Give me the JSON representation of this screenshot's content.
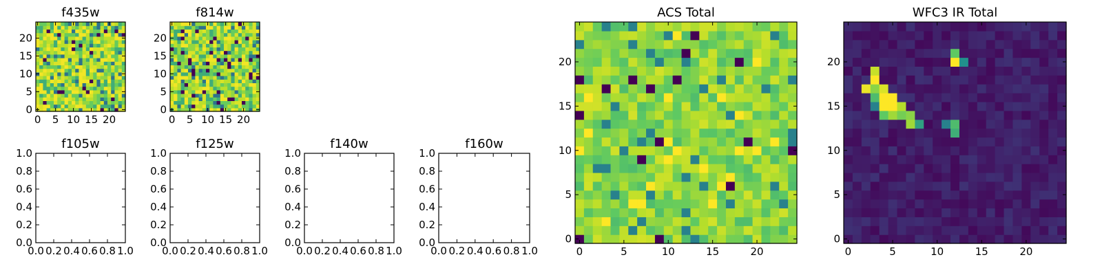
{
  "figure": {
    "panels": [
      {
        "key": "f435w",
        "title": "f435w",
        "kind": "image",
        "xticks": [
          "0",
          "5",
          "10",
          "15",
          "20"
        ],
        "yticks": [
          "0",
          "5",
          "10",
          "15",
          "20"
        ]
      },
      {
        "key": "f814w",
        "title": "f814w",
        "kind": "image",
        "xticks": [
          "0",
          "5",
          "10",
          "15",
          "20"
        ],
        "yticks": [
          "0",
          "5",
          "10",
          "15",
          "20"
        ]
      },
      {
        "key": "f105w",
        "title": "f105w",
        "kind": "empty",
        "xticks": [
          "0.0",
          "0.2",
          "0.4",
          "0.6",
          "0.8",
          "1.0"
        ],
        "yticks": [
          "0.0",
          "0.2",
          "0.4",
          "0.6",
          "0.8",
          "1.0"
        ]
      },
      {
        "key": "f125w",
        "title": "f125w",
        "kind": "empty",
        "xticks": [
          "0.0",
          "0.2",
          "0.4",
          "0.6",
          "0.8",
          "1.0"
        ],
        "yticks": [
          "0.0",
          "0.2",
          "0.4",
          "0.6",
          "0.8",
          "1.0"
        ]
      },
      {
        "key": "f140w",
        "title": "f140w",
        "kind": "empty",
        "xticks": [
          "0.0",
          "0.2",
          "0.4",
          "0.6",
          "0.8",
          "1.0"
        ],
        "yticks": [
          "0.0",
          "0.2",
          "0.4",
          "0.6",
          "0.8",
          "1.0"
        ]
      },
      {
        "key": "f160w",
        "title": "f160w",
        "kind": "empty",
        "xticks": [
          "0.0",
          "0.2",
          "0.4",
          "0.6",
          "0.8",
          "1.0"
        ],
        "yticks": [
          "0.0",
          "0.2",
          "0.4",
          "0.6",
          "0.8",
          "1.0"
        ]
      },
      {
        "key": "acs_total",
        "title": "ACS Total",
        "kind": "image",
        "xticks": [
          "0",
          "5",
          "10",
          "15",
          "20"
        ],
        "yticks": [
          "0",
          "5",
          "10",
          "15",
          "20"
        ]
      },
      {
        "key": "wfc3_ir_total",
        "title": "WFC3 IR Total",
        "kind": "image",
        "xticks": [
          "0",
          "5",
          "10",
          "15",
          "20"
        ],
        "yticks": [
          "0",
          "5",
          "10",
          "15",
          "20"
        ]
      }
    ],
    "colormap": [
      "#440154",
      "#3b528b",
      "#21918c",
      "#5ec962",
      "#b5de2b",
      "#fde725"
    ]
  },
  "chart_data": [
    {
      "type": "heatmap",
      "title": "f435w",
      "xlim": [
        -0.5,
        24.5
      ],
      "ylim": [
        -0.5,
        24.5
      ],
      "grid": false,
      "colormap": "viridis",
      "pattern": "uniform random noise"
    },
    {
      "type": "heatmap",
      "title": "f814w",
      "xlim": [
        -0.5,
        24.5
      ],
      "ylim": [
        -0.5,
        24.5
      ],
      "grid": false,
      "colormap": "viridis",
      "pattern": "uniform random noise"
    },
    {
      "type": "scatter",
      "title": "f105w",
      "x": [],
      "y": [],
      "xlim": [
        0,
        1
      ],
      "ylim": [
        0,
        1
      ]
    },
    {
      "type": "scatter",
      "title": "f125w",
      "x": [],
      "y": [],
      "xlim": [
        0,
        1
      ],
      "ylim": [
        0,
        1
      ]
    },
    {
      "type": "scatter",
      "title": "f140w",
      "x": [],
      "y": [],
      "xlim": [
        0,
        1
      ],
      "ylim": [
        0,
        1
      ]
    },
    {
      "type": "scatter",
      "title": "f160w",
      "x": [],
      "y": [],
      "xlim": [
        0,
        1
      ],
      "ylim": [
        0,
        1
      ]
    },
    {
      "type": "heatmap",
      "title": "ACS Total",
      "xlim": [
        -0.5,
        24.5
      ],
      "ylim": [
        -0.5,
        24.5
      ],
      "grid": false,
      "colormap": "viridis",
      "pattern": "random noise, mostly green-yellow with scattered dark pixels"
    },
    {
      "type": "heatmap",
      "title": "WFC3 IR Total",
      "xlim": [
        -0.5,
        24.5
      ],
      "ylim": [
        -0.5,
        24.5
      ],
      "grid": false,
      "colormap": "viridis",
      "pattern": "dark background with a bright diagonal source near x 2-8, y 13-19, a compact source at x 12, y 20-21 and a faint one at x 11-12, y 12-13",
      "bright_pixels": [
        {
          "x": 3,
          "y": 19,
          "v": 0.85
        },
        {
          "x": 2,
          "y": 17,
          "v": 0.95
        },
        {
          "x": 3,
          "y": 18,
          "v": 1.0
        },
        {
          "x": 4,
          "y": 17,
          "v": 0.9
        },
        {
          "x": 3,
          "y": 17,
          "v": 0.7
        },
        {
          "x": 4,
          "y": 16,
          "v": 1.0
        },
        {
          "x": 5,
          "y": 16,
          "v": 1.0
        },
        {
          "x": 4,
          "y": 15,
          "v": 1.0
        },
        {
          "x": 5,
          "y": 15,
          "v": 1.0
        },
        {
          "x": 6,
          "y": 15,
          "v": 0.8
        },
        {
          "x": 3,
          "y": 16,
          "v": 0.55
        },
        {
          "x": 4,
          "y": 14,
          "v": 0.6
        },
        {
          "x": 5,
          "y": 14,
          "v": 0.75
        },
        {
          "x": 6,
          "y": 14,
          "v": 0.65
        },
        {
          "x": 7,
          "y": 14,
          "v": 0.7
        },
        {
          "x": 7,
          "y": 13,
          "v": 0.75
        },
        {
          "x": 8,
          "y": 13,
          "v": 0.45
        },
        {
          "x": 3,
          "y": 15,
          "v": 0.35
        },
        {
          "x": 12,
          "y": 21,
          "v": 0.6
        },
        {
          "x": 12,
          "y": 20,
          "v": 1.0
        },
        {
          "x": 13,
          "y": 20,
          "v": 0.4
        },
        {
          "x": 11,
          "y": 13,
          "v": 0.35
        },
        {
          "x": 12,
          "y": 13,
          "v": 0.55
        },
        {
          "x": 12,
          "y": 12,
          "v": 0.5
        }
      ]
    }
  ]
}
